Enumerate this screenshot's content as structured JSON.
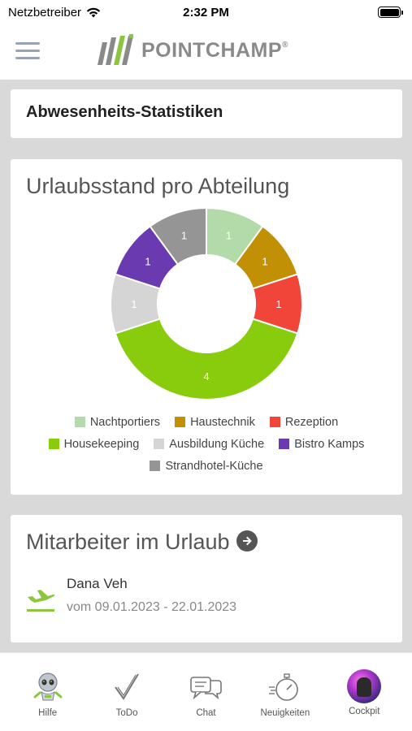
{
  "status_bar": {
    "carrier": "Netzbetreiber",
    "time": "2:32 PM"
  },
  "header": {
    "logo_text": "POINTCHAMP",
    "logo_registered": "®",
    "colors": {
      "logo_green": "#8cc63f",
      "logo_gray": "#8a8a8a"
    }
  },
  "stats_card": {
    "title": "Abwesenheits-Statistiken"
  },
  "chart_card": {
    "title": "Urlaubsstand pro Abteilung"
  },
  "chart_data": {
    "type": "pie",
    "variant": "donut",
    "title": "Urlaubsstand pro Abteilung",
    "categories": [
      "Nachtportiers",
      "Haustechnik",
      "Rezeption",
      "Housekeeping",
      "Ausbildung Küche",
      "Bistro Kamps",
      "Strandhotel-Küche"
    ],
    "values": [
      1,
      1,
      1,
      4,
      1,
      1,
      1
    ],
    "colors": [
      "#b3dbaa",
      "#c29005",
      "#f2453a",
      "#88cc0d",
      "#d5d5d5",
      "#6a3ab0",
      "#959595"
    ],
    "legend_position": "bottom",
    "data_labels": true
  },
  "vacation_card": {
    "title": "Mitarbeiter im Urlaub",
    "entries": [
      {
        "name": "Dana Veh",
        "dates": "vom 09.01.2023 - 22.01.2023"
      }
    ],
    "icon_color": "#8cc63f"
  },
  "tabbar": {
    "tabs": [
      {
        "label": "Hilfe",
        "icon": "robot-icon"
      },
      {
        "label": "ToDo",
        "icon": "checkmark-icon"
      },
      {
        "label": "Chat",
        "icon": "chat-bubbles-icon"
      },
      {
        "label": "Neuigkeiten",
        "icon": "stopwatch-icon"
      },
      {
        "label": "Cockpit",
        "icon": "avatar"
      }
    ]
  }
}
